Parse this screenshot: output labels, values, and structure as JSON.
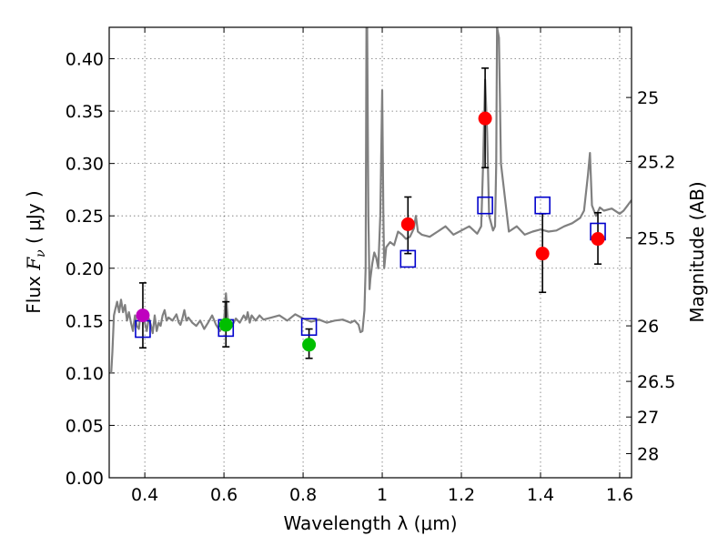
{
  "chart_data": {
    "type": "scatter",
    "title": "",
    "xlabel": "Wavelength  λ (μm)",
    "ylabel_text": "Flux ",
    "ylabel_math": "F",
    "ylabel_sub": "ν",
    "ylabel_unit": " ( μJy )",
    "y2label": "Magnitude (AB)",
    "xlim": [
      0.31,
      1.63
    ],
    "ylim": [
      0.0,
      0.43
    ],
    "grid": true,
    "xticks": [
      0.4,
      0.6,
      0.8,
      1.0,
      1.2,
      1.4,
      1.6
    ],
    "xtick_labels": [
      "0.4",
      "0.6",
      "0.8",
      "1",
      "1.2",
      "1.4",
      "1.6"
    ],
    "yticks": [
      0.0,
      0.05,
      0.1,
      0.15,
      0.2,
      0.25,
      0.3,
      0.35,
      0.4
    ],
    "ytick_labels": [
      "0.00",
      "0.05",
      "0.10",
      "0.15",
      "0.20",
      "0.25",
      "0.30",
      "0.35",
      "0.40"
    ],
    "mag_ticks": [
      {
        "label": "25",
        "flux": 0.363
      },
      {
        "label": "25.2",
        "flux": 0.302
      },
      {
        "label": "25.5",
        "flux": 0.229
      },
      {
        "label": "26",
        "flux": 0.145
      },
      {
        "label": "26.5",
        "flux": 0.092
      },
      {
        "label": "27",
        "flux": 0.058
      },
      {
        "label": "28",
        "flux": 0.023
      }
    ],
    "series": [
      {
        "name": "model_spectrum",
        "kind": "line",
        "color": "#808080",
        "x": [
          0.315,
          0.318,
          0.322,
          0.325,
          0.33,
          0.335,
          0.34,
          0.345,
          0.35,
          0.355,
          0.36,
          0.365,
          0.37,
          0.375,
          0.38,
          0.385,
          0.39,
          0.395,
          0.4,
          0.405,
          0.41,
          0.415,
          0.42,
          0.425,
          0.43,
          0.435,
          0.44,
          0.445,
          0.45,
          0.455,
          0.46,
          0.47,
          0.48,
          0.486,
          0.49,
          0.495,
          0.5,
          0.505,
          0.51,
          0.52,
          0.53,
          0.54,
          0.55,
          0.56,
          0.57,
          0.58,
          0.59,
          0.6,
          0.605,
          0.61,
          0.62,
          0.63,
          0.64,
          0.65,
          0.656,
          0.66,
          0.665,
          0.67,
          0.68,
          0.69,
          0.7,
          0.72,
          0.74,
          0.76,
          0.78,
          0.8,
          0.82,
          0.84,
          0.86,
          0.88,
          0.9,
          0.92,
          0.93,
          0.94,
          0.945,
          0.95,
          0.955,
          0.958,
          0.96,
          0.962,
          0.965,
          0.968,
          0.97,
          0.975,
          0.98,
          0.985,
          0.99,
          0.995,
          1.0,
          1.003,
          1.005,
          1.01,
          1.02,
          1.03,
          1.04,
          1.05,
          1.06,
          1.07,
          1.08,
          1.085,
          1.09,
          1.1,
          1.12,
          1.14,
          1.16,
          1.18,
          1.2,
          1.22,
          1.24,
          1.25,
          1.255,
          1.26,
          1.265,
          1.27,
          1.28,
          1.285,
          1.288,
          1.29,
          1.295,
          1.3,
          1.32,
          1.34,
          1.36,
          1.38,
          1.4,
          1.42,
          1.44,
          1.46,
          1.48,
          1.5,
          1.51,
          1.52,
          1.525,
          1.53,
          1.54,
          1.55,
          1.56,
          1.58,
          1.6,
          1.61,
          1.62,
          1.63
        ],
        "y": [
          0.1,
          0.12,
          0.155,
          0.16,
          0.168,
          0.158,
          0.17,
          0.158,
          0.165,
          0.15,
          0.158,
          0.148,
          0.14,
          0.155,
          0.145,
          0.142,
          0.16,
          0.153,
          0.148,
          0.14,
          0.152,
          0.146,
          0.138,
          0.155,
          0.14,
          0.148,
          0.145,
          0.155,
          0.16,
          0.15,
          0.153,
          0.15,
          0.156,
          0.148,
          0.146,
          0.152,
          0.16,
          0.15,
          0.153,
          0.148,
          0.145,
          0.15,
          0.142,
          0.148,
          0.155,
          0.146,
          0.14,
          0.148,
          0.176,
          0.15,
          0.145,
          0.152,
          0.148,
          0.155,
          0.151,
          0.158,
          0.148,
          0.155,
          0.15,
          0.155,
          0.151,
          0.153,
          0.155,
          0.15,
          0.156,
          0.152,
          0.149,
          0.151,
          0.148,
          0.15,
          0.151,
          0.148,
          0.15,
          0.146,
          0.139,
          0.14,
          0.16,
          0.2,
          0.43,
          0.43,
          0.25,
          0.18,
          0.19,
          0.205,
          0.215,
          0.21,
          0.2,
          0.25,
          0.37,
          0.25,
          0.2,
          0.22,
          0.225,
          0.222,
          0.235,
          0.232,
          0.228,
          0.23,
          0.238,
          0.25,
          0.235,
          0.232,
          0.23,
          0.235,
          0.24,
          0.232,
          0.236,
          0.24,
          0.233,
          0.24,
          0.3,
          0.38,
          0.33,
          0.25,
          0.236,
          0.24,
          0.3,
          0.43,
          0.42,
          0.3,
          0.235,
          0.24,
          0.232,
          0.235,
          0.237,
          0.235,
          0.236,
          0.24,
          0.243,
          0.248,
          0.255,
          0.29,
          0.31,
          0.26,
          0.25,
          0.258,
          0.255,
          0.257,
          0.252,
          0.255,
          0.26,
          0.265
        ]
      },
      {
        "name": "model_synthetic_photometry",
        "kind": "open-square",
        "color": "#0000cc",
        "x": [
          0.395,
          0.605,
          0.815,
          1.065,
          1.26,
          1.405,
          1.545
        ],
        "y": [
          0.142,
          0.143,
          0.144,
          0.209,
          0.26,
          0.26,
          0.235
        ]
      },
      {
        "name": "observed_photometry",
        "kind": "filled-circle",
        "x": [
          0.395,
          0.605,
          0.815,
          1.065,
          1.26,
          1.405,
          1.545
        ],
        "y": [
          0.155,
          0.146,
          0.127,
          0.242,
          0.343,
          0.214,
          0.228
        ],
        "yerr_low": [
          0.031,
          0.021,
          0.013,
          0.028,
          0.047,
          0.037,
          0.024
        ],
        "yerr_high": [
          0.031,
          0.022,
          0.015,
          0.026,
          0.048,
          0.038,
          0.025
        ],
        "colors": [
          "#bf00bf",
          "#00bf00",
          "#00bf00",
          "#ff0000",
          "#ff0000",
          "#ff0000",
          "#ff0000"
        ]
      }
    ]
  }
}
